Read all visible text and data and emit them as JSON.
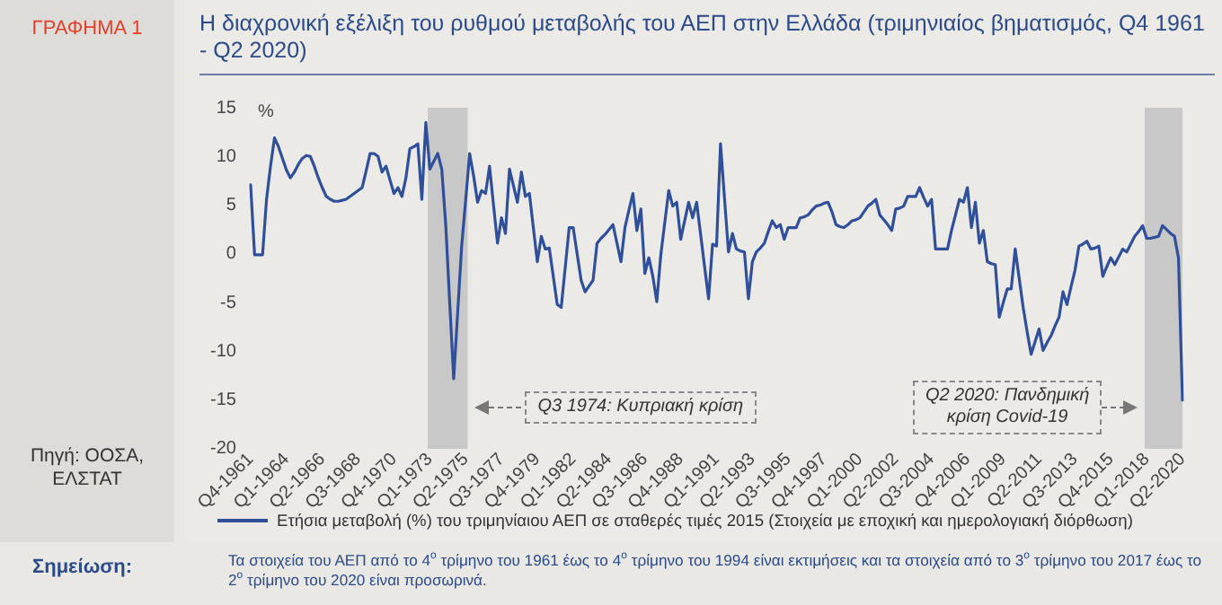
{
  "chart_data": {
    "type": "line",
    "title": "Η διαχρονική εξέλιξη του ρυθμού μεταβολής του ΑΕΠ στην Ελλάδα (τριμηνιαίος βηματισμός, Q4 1961 - Q2 2020)",
    "ylabel": "%",
    "annotations": [
      "ΓΡΑΦΗΜΑ 1",
      "Πηγή: ΟΟΣΑ, ΕΛΣΤΑΤ",
      "Σημείωση:",
      "Τα στοιχεία του ΑΕΠ από το 4$^{ο}$ τρίμηνο του 1961 έως το 4$^{ο}$ τρίμηνο του 1994 είναι εκτιμήσεις και τα στοιχεία από το 3$^{ο}$ τρίμηνο του 2017 έως το 2$^{ο}$ τρίμηνο του 2020 είναι προσωρινά.",
      "Q3 1974:  Κυπριακή κρίση",
      "Q2 2020: Πανδημική κρίση Covid-19"
    ],
    "categories": [
      "Q4-1961",
      null,
      null,
      null,
      null,
      null,
      null,
      null,
      null,
      "Q1-1964",
      null,
      null,
      null,
      null,
      null,
      null,
      null,
      null,
      "Q2-1966",
      null,
      null,
      null,
      null,
      null,
      null,
      null,
      null,
      "Q3-1968",
      null,
      null,
      null,
      null,
      null,
      null,
      null,
      null,
      "Q4-1970",
      null,
      null,
      null,
      null,
      null,
      null,
      null,
      null,
      "Q1-1973",
      null,
      null,
      null,
      null,
      null,
      null,
      null,
      null,
      "Q2-1975",
      null,
      null,
      null,
      null,
      null,
      null,
      null,
      null,
      "Q3-1977",
      null,
      null,
      null,
      null,
      null,
      null,
      null,
      null,
      "Q4-1979",
      null,
      null,
      null,
      null,
      null,
      null,
      null,
      null,
      "Q1-1982",
      null,
      null,
      null,
      null,
      null,
      null,
      null,
      null,
      "Q2-1984",
      null,
      null,
      null,
      null,
      null,
      null,
      null,
      null,
      "Q3-1986",
      null,
      null,
      null,
      null,
      null,
      null,
      null,
      null,
      "Q4-1988",
      null,
      null,
      null,
      null,
      null,
      null,
      null,
      null,
      "Q1-1991",
      null,
      null,
      null,
      null,
      null,
      null,
      null,
      null,
      "Q2-1993",
      null,
      null,
      null,
      null,
      null,
      null,
      null,
      null,
      "Q3-1995",
      null,
      null,
      null,
      null,
      null,
      null,
      null,
      null,
      "Q4-1997",
      null,
      null,
      null,
      null,
      null,
      null,
      null,
      null,
      "Q1-2000",
      null,
      null,
      null,
      null,
      null,
      null,
      null,
      null,
      "Q2-2002",
      null,
      null,
      null,
      null,
      null,
      null,
      null,
      null,
      "Q3-2004",
      null,
      null,
      null,
      null,
      null,
      null,
      null,
      null,
      "Q4-2006",
      null,
      null,
      null,
      null,
      null,
      null,
      null,
      null,
      "Q1-2009",
      null,
      null,
      null,
      null,
      null,
      null,
      null,
      null,
      "Q2-2011",
      null,
      null,
      null,
      null,
      null,
      null,
      null,
      null,
      "Q3-2013",
      null,
      null,
      null,
      null,
      null,
      null,
      null,
      null,
      "Q4-2015",
      null,
      null,
      null,
      null,
      null,
      null,
      null,
      null,
      "Q1-2018",
      null,
      null,
      null,
      null,
      null,
      null,
      null,
      null,
      "Q2-2020"
    ],
    "series": [
      {
        "name": "Ετήσια μεταβολή (%) του τριμηνίαιου ΑΕΠ σε σταθερές τιμές 2015 (Στοιχεία με εποχική και ημερολογιακή διόρθωση)",
        "color": "#2f4f9a",
        "values": [
          7.1,
          -0.1,
          -0.1,
          -0.1,
          5.6,
          9,
          11.9,
          11,
          9.8,
          8.6,
          7.8,
          8.4,
          9.2,
          9.8,
          10.1,
          10,
          9,
          7.8,
          6.8,
          5.9,
          5.6,
          5.4,
          5.4,
          5.5,
          5.6,
          5.9,
          6.2,
          6.5,
          6.8,
          8.5,
          10.3,
          10.3,
          10,
          8.4,
          9,
          7.6,
          6.2,
          6.8,
          5.9,
          7.8,
          10.8,
          11,
          11.3,
          5.6,
          13.5,
          8.7,
          9.5,
          10.3,
          8.7,
          3,
          -5,
          -12.8,
          -6,
          0.8,
          5.5,
          10.3,
          8,
          5.3,
          6.5,
          6.2,
          9,
          5,
          1.1,
          3.7,
          2.1,
          8.7,
          7,
          5.3,
          8.4,
          5.9,
          6.2,
          2.7,
          -0.8,
          1.8,
          0.5,
          0.6,
          -2.3,
          -5.2,
          -5.5,
          -1.4,
          2.7,
          2.7,
          0,
          -2.7,
          -3.9,
          -3.3,
          -2.7,
          1.1,
          1.6,
          2,
          2.5,
          3,
          1.1,
          -0.8,
          2.7,
          4.5,
          6.2,
          2.4,
          4.6,
          -2,
          -0.4,
          -2.3,
          -4.9,
          -0.1,
          3.2,
          6.5,
          4.9,
          5.3,
          1.5,
          3.4,
          5.3,
          3.7,
          5.3,
          2,
          -1.3,
          -4.6,
          1,
          0.8,
          11.3,
          5.7,
          0.2,
          2.1,
          0.5,
          0.3,
          0.2,
          -4.6,
          -0.8,
          0.2,
          0.6,
          1.1,
          2.3,
          3.4,
          2.7,
          3,
          1.5,
          2.7,
          2.7,
          2.7,
          3.7,
          3.8,
          4,
          4.5,
          4.9,
          5,
          5.2,
          5.3,
          4.3,
          3,
          2.8,
          2.7,
          3,
          3.4,
          3.5,
          3.7,
          4.3,
          4.9,
          5.2,
          5.6,
          4,
          3.5,
          3,
          2.4,
          4.6,
          4.7,
          4.9,
          5.9,
          5.9,
          5.9,
          6.8,
          5.8,
          4.9,
          5.6,
          0.5,
          0.5,
          0.5,
          0.5,
          2.4,
          4,
          5.6,
          5.3,
          6.8,
          2.7,
          5.3,
          1.1,
          2.4,
          -0.8,
          -1,
          -1.1,
          -6.5,
          -5,
          -3.6,
          -3.6,
          0.5,
          -2.5,
          -5.5,
          -8,
          -10.3,
          -9,
          -7.7,
          -9.9,
          -9.1,
          -8.4,
          -7.4,
          -6.5,
          -3.9,
          -5.2,
          -3.4,
          -1.7,
          0.8,
          1,
          1.3,
          0.5,
          0.6,
          0.8,
          -2.3,
          -1.3,
          -0.4,
          -1.1,
          -0.3,
          0.5,
          0.2,
          1,
          1.8,
          2.3,
          2.9,
          1.6,
          1.6,
          1.7,
          1.8,
          2.9,
          2.5,
          2.1,
          1.8,
          -0.4,
          -15
        ]
      }
    ],
    "ylim": [
      -20,
      15
    ],
    "yticks": [
      -20,
      -15,
      -10,
      -5,
      0,
      5,
      10,
      15
    ],
    "bands": [
      {
        "axis": "x",
        "from": "Q1-1973",
        "to": "Q2-1975",
        "color": "#c8c8c8"
      },
      {
        "axis": "x",
        "from": "Q1-2018",
        "to": "Q2-2020",
        "color": "#c8c8c8"
      }
    ],
    "grid": false,
    "legend": "bottom",
    "marker": "none",
    "line_style": "solid"
  }
}
